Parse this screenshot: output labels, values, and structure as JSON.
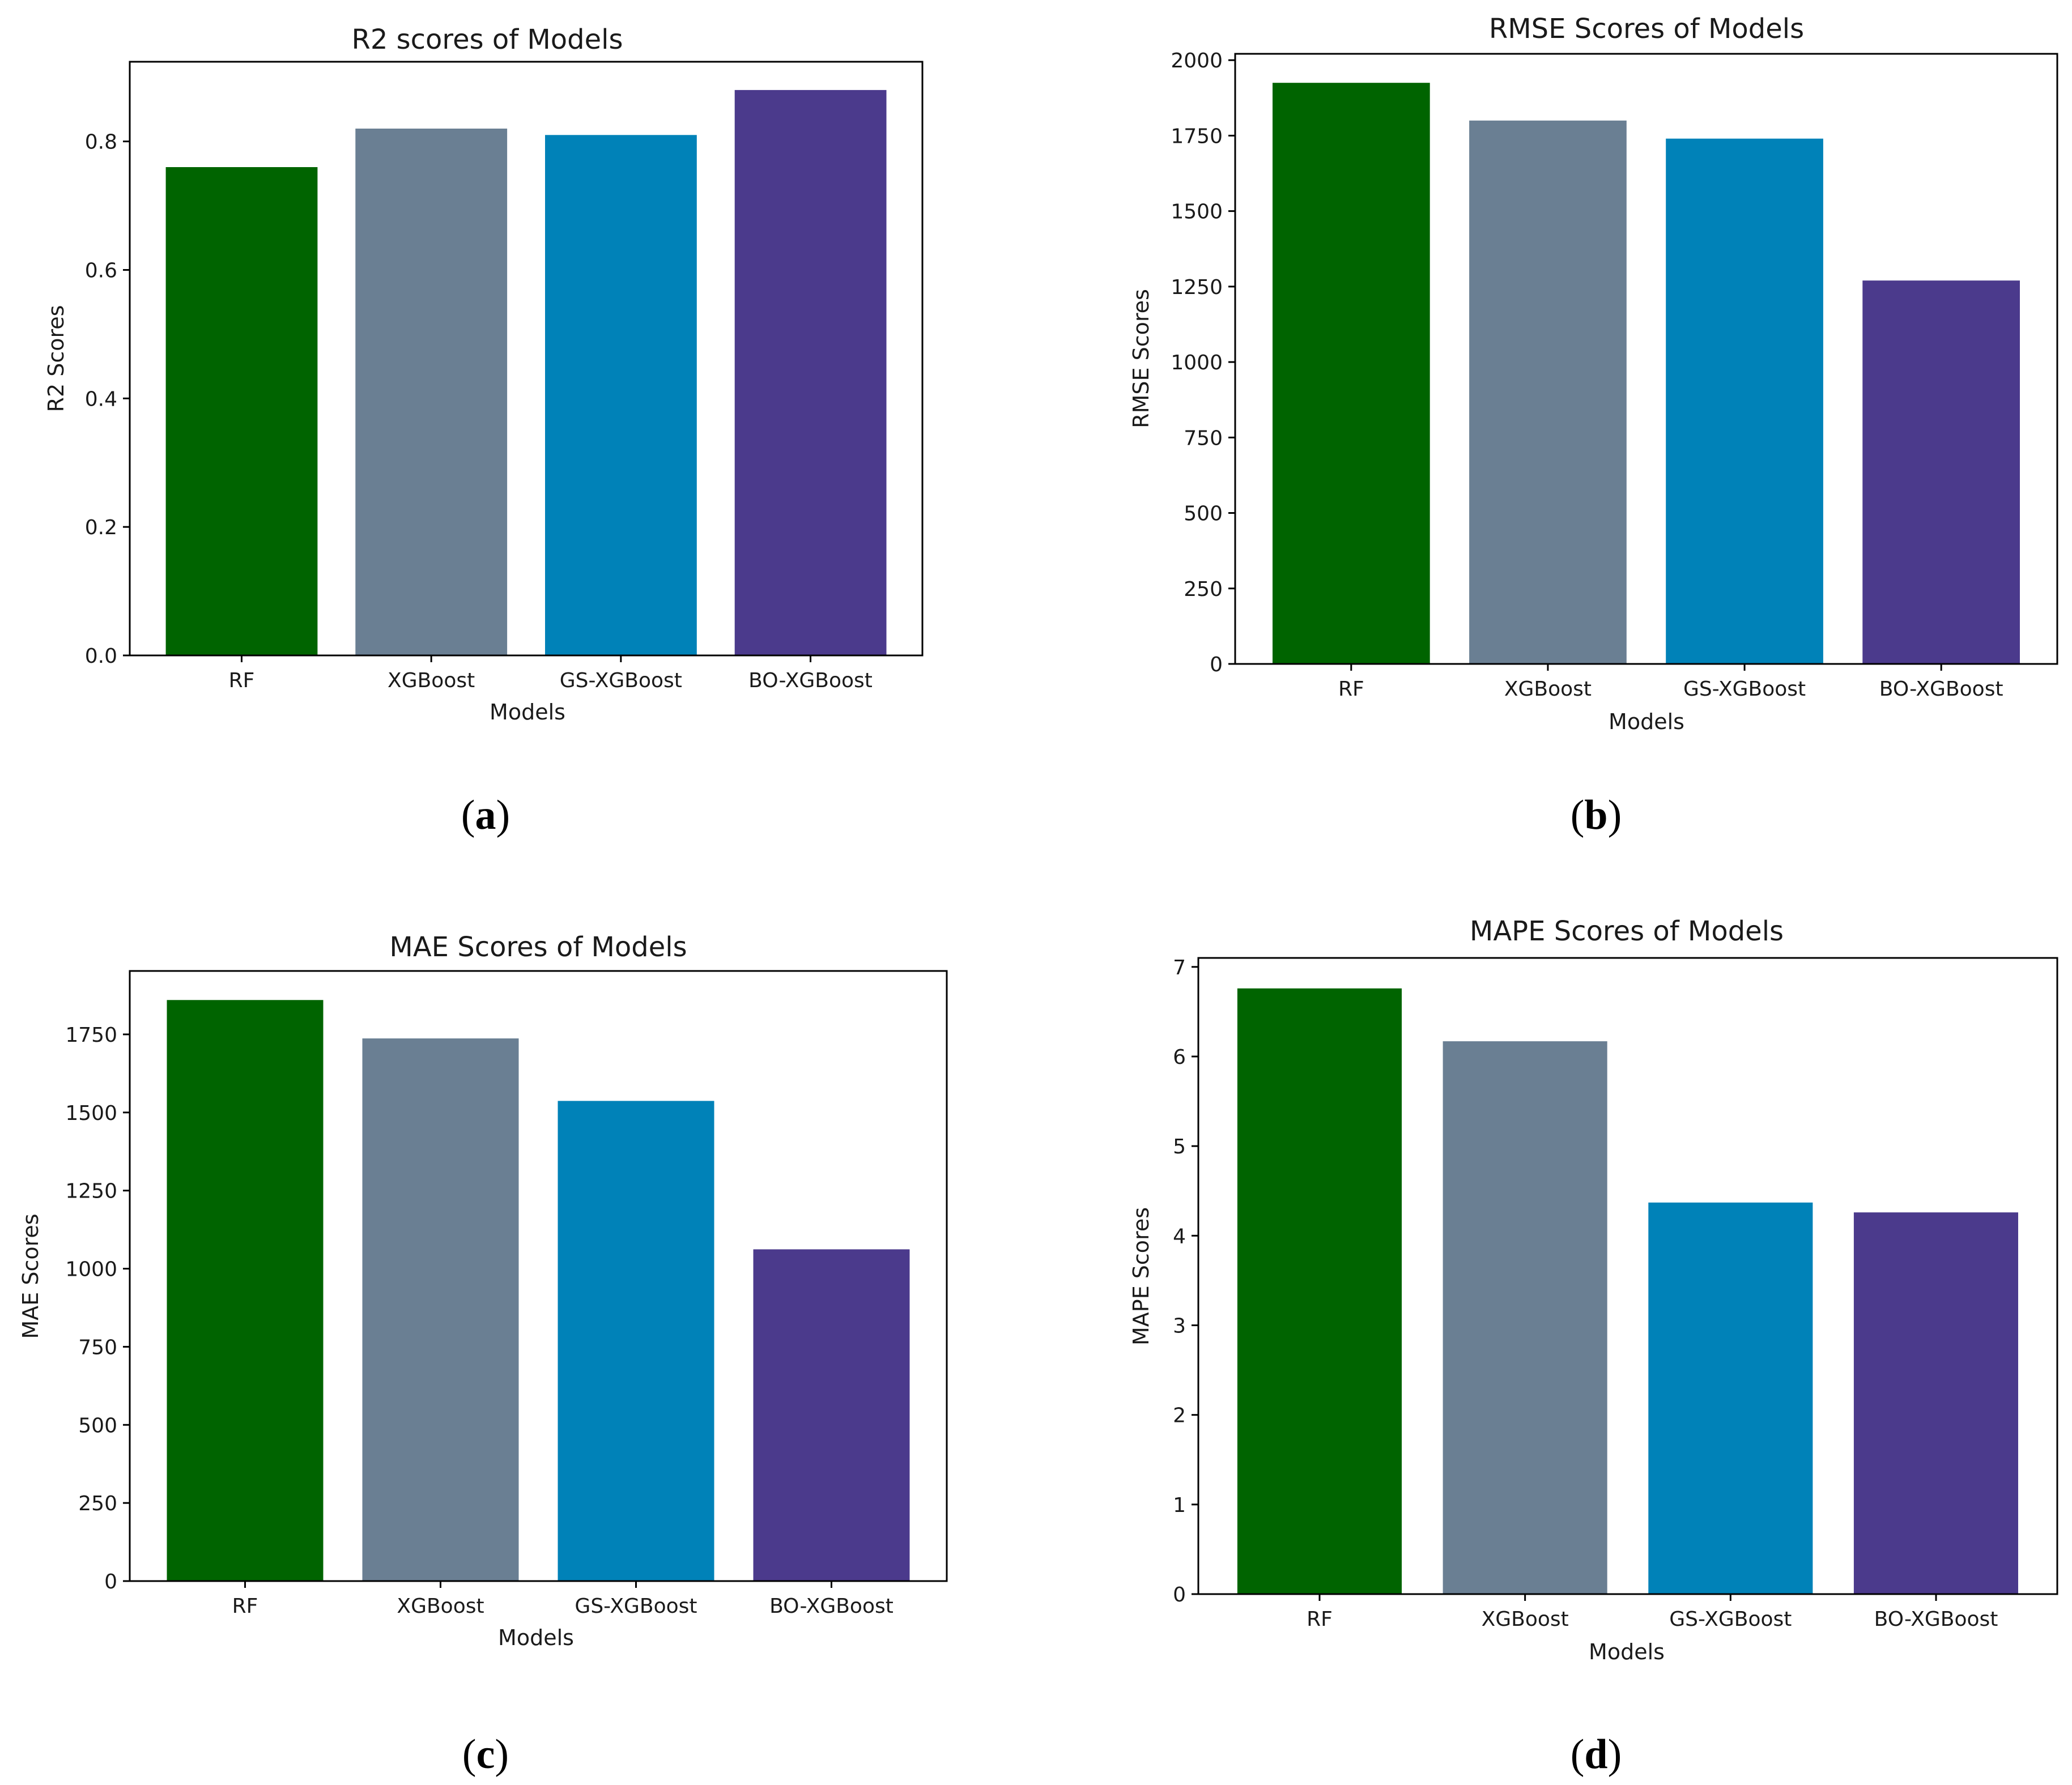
{
  "chart_data": [
    {
      "type": "bar",
      "title": "R2 scores of Models",
      "xlabel": "Models",
      "ylabel": "R2 Scores",
      "categories": [
        "RF",
        "XGBoost",
        "GS-XGBoost",
        "BO-XGBoost"
      ],
      "values": [
        0.76,
        0.82,
        0.81,
        0.88
      ],
      "colors": [
        "#006400",
        "#6a7f93",
        "#0082b8",
        "#4b3a8c"
      ],
      "ylim": [
        0,
        0.924
      ],
      "yticks": [
        0.0,
        0.2,
        0.4,
        0.6,
        0.8
      ],
      "ytick_labels": [
        "0.0",
        "0.2",
        "0.4",
        "0.6",
        "0.8"
      ],
      "grid": false,
      "panel_label": {
        "open": "(",
        "letter": "a",
        "close": ")"
      }
    },
    {
      "type": "bar",
      "title": "RMSE Scores of Models",
      "xlabel": "Models",
      "ylabel": "RMSE Scores",
      "categories": [
        "RF",
        "XGBoost",
        "GS-XGBoost",
        "BO-XGBoost"
      ],
      "values": [
        1925,
        1800,
        1740,
        1270
      ],
      "colors": [
        "#006400",
        "#6a7f93",
        "#0082b8",
        "#4b3a8c"
      ],
      "ylim": [
        0,
        2021
      ],
      "yticks": [
        0,
        250,
        500,
        750,
        1000,
        1250,
        1500,
        1750,
        2000
      ],
      "ytick_labels": [
        "0",
        "250",
        "500",
        "750",
        "1000",
        "1250",
        "1500",
        "1750",
        "2000"
      ],
      "grid": false,
      "panel_label": {
        "open": "(",
        "letter": "b",
        "close": ")"
      }
    },
    {
      "type": "bar",
      "title": "MAE Scores of Models",
      "xlabel": "Models",
      "ylabel": "MAE Scores",
      "categories": [
        "RF",
        "XGBoost",
        "GS-XGBoost",
        "BO-XGBoost"
      ],
      "values": [
        1860,
        1737,
        1537,
        1062
      ],
      "colors": [
        "#006400",
        "#6a7f93",
        "#0082b8",
        "#4b3a8c"
      ],
      "ylim": [
        0,
        1953
      ],
      "yticks": [
        0,
        250,
        500,
        750,
        1000,
        1250,
        1500,
        1750
      ],
      "ytick_labels": [
        "0",
        "250",
        "500",
        "750",
        "1000",
        "1250",
        "1500",
        "1750"
      ],
      "grid": false,
      "panel_label": {
        "open": "(",
        "letter": "c",
        "close": ")"
      }
    },
    {
      "type": "bar",
      "title": "MAPE Scores of Models",
      "xlabel": "Models",
      "ylabel": "MAPE Scores",
      "categories": [
        "RF",
        "XGBoost",
        "GS-XGBoost",
        "BO-XGBoost"
      ],
      "values": [
        6.76,
        6.17,
        4.37,
        4.26
      ],
      "colors": [
        "#006400",
        "#6a7f93",
        "#0082b8",
        "#4b3a8c"
      ],
      "ylim": [
        0,
        7.1
      ],
      "yticks": [
        0,
        1,
        2,
        3,
        4,
        5,
        6,
        7
      ],
      "ytick_labels": [
        "0",
        "1",
        "2",
        "3",
        "4",
        "5",
        "6",
        "7"
      ],
      "grid": false,
      "panel_label": {
        "open": "(",
        "letter": "d",
        "close": ")"
      }
    }
  ]
}
